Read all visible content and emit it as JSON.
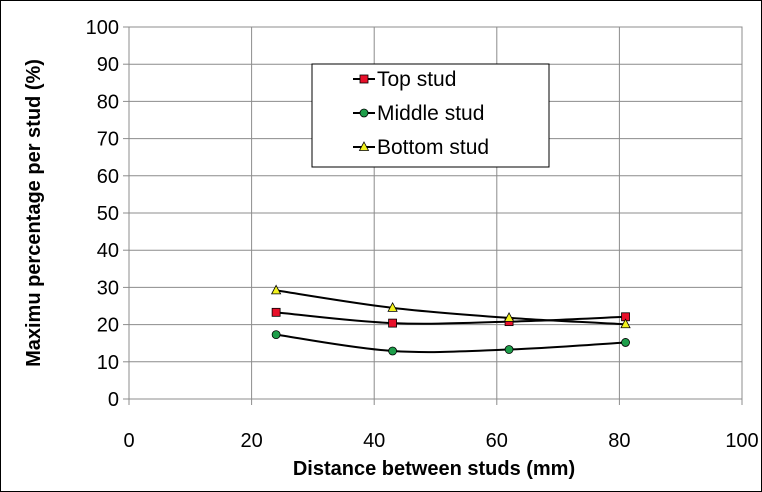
{
  "chart_data": {
    "type": "line",
    "title": "",
    "xlabel": "Distance between studs (mm)",
    "ylabel": "Maximu percentage per stud (%)",
    "xlim": [
      0,
      100
    ],
    "ylim": [
      0,
      100
    ],
    "xticks": [
      0,
      20,
      40,
      60,
      80,
      100
    ],
    "yticks": [
      0,
      10,
      20,
      30,
      40,
      50,
      60,
      70,
      80,
      90,
      100
    ],
    "grid": true,
    "legend_position": "top-center",
    "x": [
      24,
      43,
      62,
      81
    ],
    "series": [
      {
        "name": "Top stud",
        "marker": "square",
        "color": "#e8102a",
        "values": [
          23.3,
          20.4,
          20.8,
          22.1
        ]
      },
      {
        "name": "Middle stud",
        "marker": "circle",
        "color": "#1e9e4a",
        "values": [
          17.3,
          12.9,
          13.3,
          15.2
        ]
      },
      {
        "name": "Bottom stud",
        "marker": "triangle",
        "color": "#f2f21e",
        "values": [
          29.2,
          24.5,
          21.8,
          20.1
        ]
      }
    ]
  }
}
